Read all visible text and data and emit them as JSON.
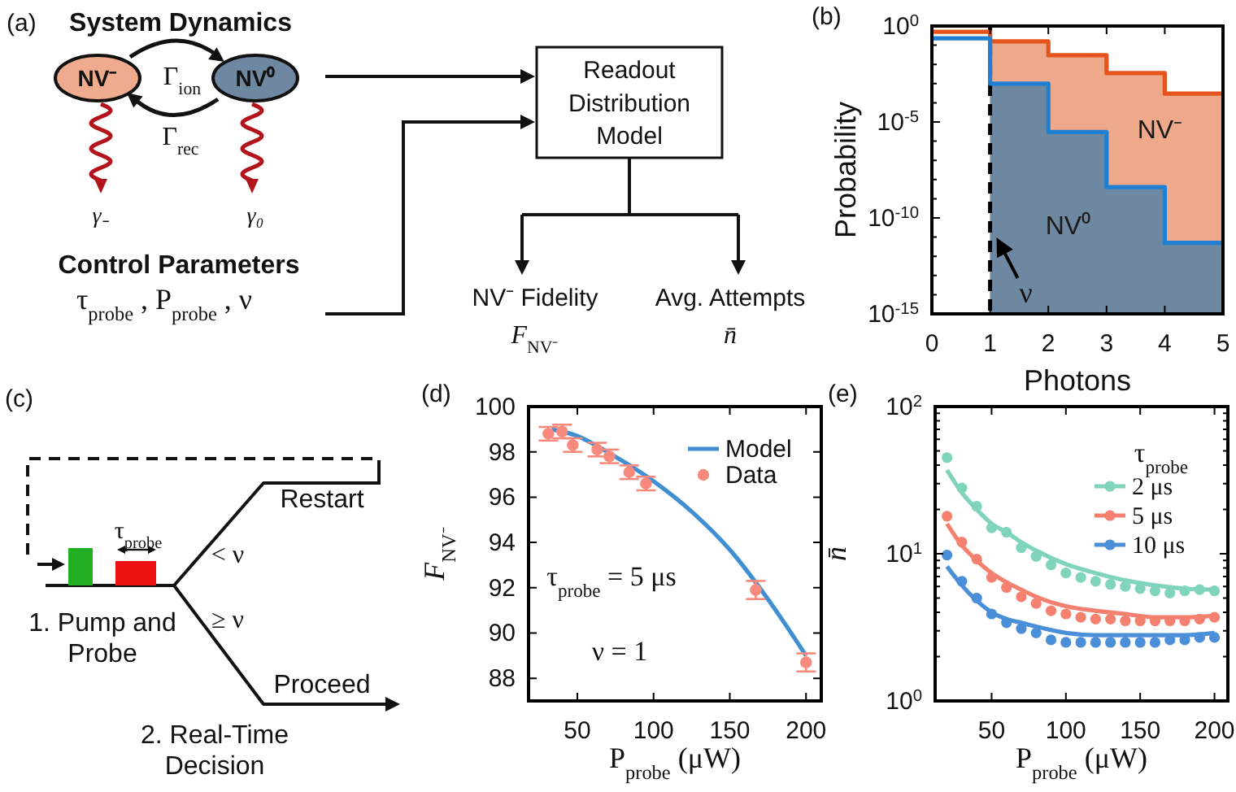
{
  "chart_data": [
    {
      "type": "other",
      "title": "(a)",
      "annotations": [
        "System Dynamics",
        "NV⁻",
        "NV⁰",
        "Γ$_{ion}$",
        "Γ$_{rec}$",
        "γ₋",
        "γ₀",
        "Control Parameters",
        "τ$_{probe}$ , P$_{probe}$ , ν",
        "Readout\nDistribution\nModel",
        "NV⁻ Fidelity",
        "Avg. Attempts",
        "F$_{NV⁻}$",
        "n̄"
      ]
    },
    {
      "type": "step",
      "title": "(b)",
      "xlabel": "Photons",
      "ylabel": "Probability",
      "xlim": [
        0,
        5
      ],
      "xticks": [
        0,
        1,
        2,
        3,
        4,
        5
      ],
      "ylim": [
        1e-15,
        1
      ],
      "log": "y",
      "yticks": [
        {
          "value": 1e-15,
          "label": "10$^{-15}$"
        },
        {
          "value": 1e-14,
          "label": null
        },
        {
          "value": 1e-13,
          "label": null
        },
        {
          "value": 1e-12,
          "label": null
        },
        {
          "value": 1e-11,
          "label": null
        },
        {
          "value": 1e-10,
          "label": "10$^{-10}$"
        },
        {
          "value": 1e-09,
          "label": null
        },
        {
          "value": 1e-08,
          "label": null
        },
        {
          "value": 1e-07,
          "label": null
        },
        {
          "value": 1e-06,
          "label": null
        },
        {
          "value": 1e-05,
          "label": "10$^{-5}$"
        },
        {
          "value": 0.0001,
          "label": null
        },
        {
          "value": 0.001,
          "label": null
        },
        {
          "value": 0.01,
          "label": null
        },
        {
          "value": 0.1,
          "label": null
        },
        {
          "value": 1,
          "label": "10$^{0}$"
        }
      ],
      "ref_lines": [
        {
          "axis": "x",
          "value": 1,
          "label": "ν",
          "color": "#000000",
          "line_style": "dashed"
        }
      ],
      "series": [
        {
          "type": "area",
          "name": "NV⁻",
          "color": "#eea98b",
          "x": [
            1,
            2,
            2,
            3,
            3,
            4,
            4,
            5
          ],
          "values": [
            0.16,
            0.16,
            0.03,
            0.03,
            0.0035,
            0.0035,
            0.0003,
            0.0003
          ]
        },
        {
          "type": "area",
          "name": "NV⁰",
          "color": "#6f88a1",
          "x": [
            1,
            2,
            2,
            3,
            3,
            4,
            4,
            5
          ],
          "values": [
            0.001,
            0.001,
            3e-06,
            3e-06,
            4e-09,
            4e-09,
            5e-12,
            5e-12
          ]
        },
        {
          "type": "step",
          "color": "#e4541c",
          "x": [
            0,
            1,
            2,
            3,
            4,
            5
          ],
          "values": [
            0.5,
            0.16,
            0.03,
            0.0035,
            0.0003,
            0.0003
          ]
        },
        {
          "type": "step",
          "color": "#1f80d3",
          "x": [
            0,
            1,
            2,
            3,
            4,
            5
          ],
          "values": [
            0.23,
            0.001,
            3e-06,
            4e-09,
            5e-12,
            5e-12
          ]
        }
      ]
    },
    {
      "type": "other",
      "title": "(c)",
      "annotations": [
        "τ$_{probe}$",
        "< ν",
        "≥ ν",
        "Restart",
        "Proceed",
        "1. Pump and\nProbe",
        "2. Real-Time\nDecision"
      ]
    },
    {
      "type": "scatter",
      "title": "(d)",
      "xlabel": "P$_{probe}$ (μW)",
      "ylabel": "F$_{NV⁻}$",
      "xlim": [
        18,
        210
      ],
      "ylim": [
        87,
        100
      ],
      "xticks": [
        50,
        100,
        150,
        200
      ],
      "yticks": [
        88,
        90,
        92,
        94,
        96,
        98,
        100
      ],
      "legend": "top right",
      "annotations": [
        "τ$_{probe}$ = 5 μs",
        "ν = 1"
      ],
      "series": [
        {
          "type": "line",
          "name": "Model",
          "color": "#3f8fd2",
          "x": [
            33,
            50,
            72,
            100,
            126,
            151,
            176,
            200
          ],
          "values": [
            99.0,
            98.7,
            97.9,
            96.7,
            95.3,
            93.6,
            91.4,
            89.0
          ]
        },
        {
          "type": "scatter",
          "name": "Data",
          "color": "#f78a7c",
          "marker": "circle",
          "x": [
            31,
            40,
            47,
            63,
            71,
            84,
            95,
            167,
            200
          ],
          "values": [
            98.8,
            98.9,
            98.3,
            98.1,
            97.8,
            97.1,
            96.6,
            91.9,
            88.7
          ],
          "errors": [
            0.3,
            0.3,
            0.3,
            0.3,
            0.3,
            0.3,
            0.3,
            0.4,
            0.4
          ]
        }
      ]
    },
    {
      "type": "line",
      "title": "(e)",
      "xlabel": "P$_{probe}$ (μW)",
      "ylabel": "n̄",
      "xlim": [
        12,
        209
      ],
      "ylim": [
        1,
        100
      ],
      "log": "y",
      "xticks": [
        50,
        100,
        150,
        200
      ],
      "yticks": [
        {
          "value": 1,
          "label": "10$^{0}$"
        },
        {
          "value": 2,
          "label": null
        },
        {
          "value": 3,
          "label": null
        },
        {
          "value": 4,
          "label": null
        },
        {
          "value": 5,
          "label": null
        },
        {
          "value": 6,
          "label": null
        },
        {
          "value": 7,
          "label": null
        },
        {
          "value": 8,
          "label": null
        },
        {
          "value": 9,
          "label": null
        },
        {
          "value": 10,
          "label": "10$^{1}$"
        },
        {
          "value": 20,
          "label": null
        },
        {
          "value": 30,
          "label": null
        },
        {
          "value": 40,
          "label": null
        },
        {
          "value": 50,
          "label": null
        },
        {
          "value": 60,
          "label": null
        },
        {
          "value": 70,
          "label": null
        },
        {
          "value": 80,
          "label": null
        },
        {
          "value": 90,
          "label": null
        },
        {
          "value": 100,
          "label": "10$^{2}$"
        }
      ],
      "legend": "top right",
      "legend_title": "τ$_{probe}$",
      "series": [
        {
          "type": "line",
          "name": "2 μs",
          "color": "#7fd4bb",
          "x": [
            20,
            30,
            40,
            50,
            60,
            70,
            80,
            100,
            120,
            140,
            160,
            180,
            200
          ],
          "values": [
            37,
            26,
            20,
            16,
            14,
            12,
            10.5,
            8.5,
            7.4,
            6.6,
            6.1,
            5.8,
            5.7
          ]
        },
        {
          "type": "line",
          "name": "5 μs",
          "color": "#f4806f",
          "x": [
            20,
            30,
            40,
            50,
            60,
            70,
            80,
            100,
            120,
            140,
            160,
            180,
            200
          ],
          "values": [
            16,
            11.4,
            9.0,
            7.4,
            6.4,
            5.7,
            5.1,
            4.4,
            4.1,
            3.9,
            3.7,
            3.7,
            3.8
          ]
        },
        {
          "type": "line",
          "name": "10 μs",
          "color": "#4a8fd8",
          "x": [
            20,
            30,
            40,
            50,
            60,
            70,
            80,
            100,
            120,
            140,
            160,
            180,
            200
          ],
          "values": [
            8.2,
            6.1,
            4.8,
            4.0,
            3.6,
            3.4,
            3.2,
            2.9,
            2.8,
            2.8,
            2.8,
            2.8,
            2.9
          ]
        },
        {
          "type": "scatter",
          "color": "#7fd4bb",
          "marker": "circle",
          "x": [
            20,
            30,
            40,
            50,
            60,
            70,
            80,
            90,
            100,
            110,
            120,
            130,
            140,
            150,
            160,
            170,
            180,
            190,
            200
          ],
          "values": [
            45,
            28,
            21,
            15,
            14,
            11,
            9.6,
            8.4,
            7.4,
            6.9,
            6.5,
            6.2,
            6.0,
            5.8,
            5.6,
            5.4,
            5.6,
            5.7,
            5.6
          ]
        },
        {
          "type": "scatter",
          "color": "#f4806f",
          "marker": "circle",
          "x": [
            20,
            30,
            40,
            50,
            60,
            70,
            80,
            90,
            100,
            110,
            120,
            130,
            140,
            150,
            160,
            170,
            180,
            190,
            200
          ],
          "values": [
            18,
            12,
            9.2,
            6.9,
            5.9,
            5.1,
            4.6,
            4.1,
            3.9,
            3.7,
            3.6,
            3.6,
            3.5,
            3.5,
            3.5,
            3.5,
            3.5,
            3.6,
            3.7
          ]
        },
        {
          "type": "scatter",
          "color": "#4a8fd8",
          "marker": "circle",
          "x": [
            20,
            30,
            40,
            50,
            60,
            70,
            80,
            90,
            100,
            110,
            120,
            130,
            140,
            150,
            160,
            170,
            180,
            190,
            200
          ],
          "values": [
            9.8,
            6.5,
            5.0,
            3.9,
            3.4,
            3.1,
            2.9,
            2.6,
            2.5,
            2.5,
            2.5,
            2.5,
            2.5,
            2.5,
            2.5,
            2.6,
            2.6,
            2.7,
            2.7
          ]
        }
      ]
    }
  ]
}
